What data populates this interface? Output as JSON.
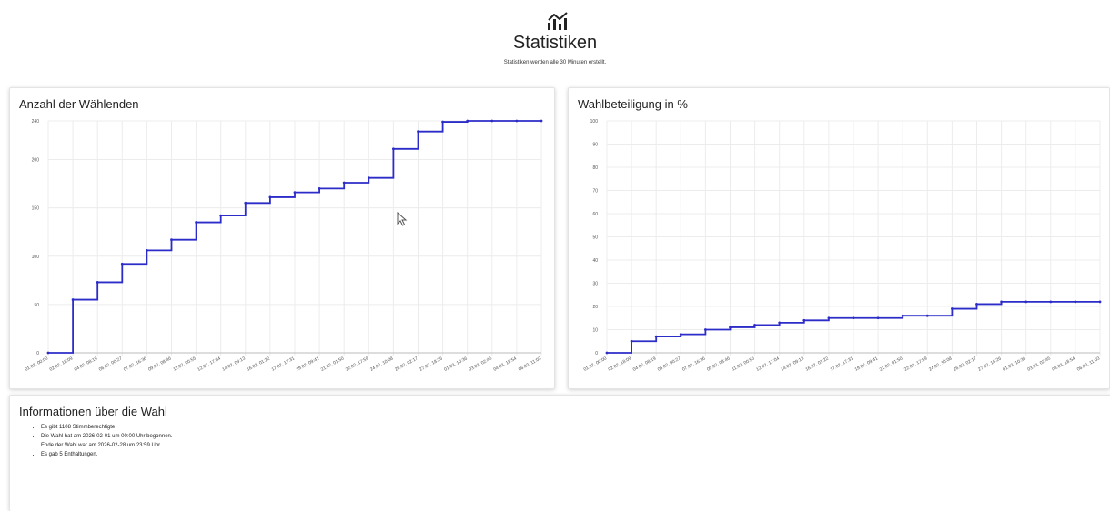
{
  "header": {
    "icon": "chart-icon",
    "title": "Statistiken",
    "subtitle": "Statistiken werden alle 30 Minuten erstellt."
  },
  "chart_data": [
    {
      "type": "line",
      "step": true,
      "title": "Anzahl der Wählenden",
      "categories": [
        "01.02. 00:00",
        "02.02. 18:09",
        "04.02. 08:19",
        "06.02. 00:27",
        "07.02. 16:36",
        "09.02. 08:46",
        "11.02. 00:55",
        "12.02. 17:04",
        "14.02. 09:13",
        "16.02. 01:22",
        "17.02. 17:31",
        "19.02. 09:41",
        "21.02. 01:50",
        "22.02. 17:59",
        "24.02. 10:08",
        "26.02. 02:17",
        "27.02. 18:26",
        "01.03. 10:36",
        "03.03. 02:45",
        "04.03. 18:54",
        "06.03. 11:03"
      ],
      "values": [
        0,
        55,
        73,
        92,
        106,
        117,
        135,
        142,
        155,
        161,
        166,
        170,
        176,
        181,
        211,
        229,
        239,
        240,
        240,
        240,
        240
      ],
      "ylim": [
        0,
        240
      ],
      "yticks": [
        0,
        50,
        100,
        150,
        200,
        240
      ],
      "color": "#2c2cc8",
      "grid": true,
      "legend": "none"
    },
    {
      "type": "line",
      "step": true,
      "title": "Wahlbeteiligung in %",
      "categories": [
        "01.02. 00:00",
        "02.02. 18:09",
        "04.02. 08:19",
        "06.02. 00:27",
        "07.02. 16:36",
        "09.02. 08:46",
        "11.02. 00:55",
        "12.02. 17:04",
        "14.02. 09:13",
        "16.02. 01:22",
        "17.02. 17:31",
        "19.02. 09:41",
        "21.02. 01:50",
        "22.02. 17:59",
        "24.02. 10:08",
        "26.02. 02:17",
        "27.02. 18:26",
        "01.03. 10:36",
        "03.03. 02:45",
        "04.03. 18:54",
        "06.03. 11:03"
      ],
      "values": [
        0,
        5,
        7,
        8,
        10,
        11,
        12,
        13,
        14,
        15,
        15,
        15,
        16,
        16,
        19,
        21,
        22,
        22,
        22,
        22,
        22
      ],
      "ylim": [
        0,
        100
      ],
      "yticks": [
        0,
        10,
        20,
        30,
        40,
        50,
        60,
        70,
        80,
        90,
        100
      ],
      "color": "#2c2cc8",
      "grid": true,
      "legend": "none"
    }
  ],
  "info": {
    "title": "Informationen über die Wahl",
    "items": [
      "Es gibt 1108 Stimmberechtigte",
      "Die Wahl hat am 2026-02-01 um 00:00 Uhr begonnen.",
      "Ende der Wahl war am 2026-02-28 um 23:59 Uhr.",
      "Es gab 5 Enthaltungen."
    ]
  }
}
